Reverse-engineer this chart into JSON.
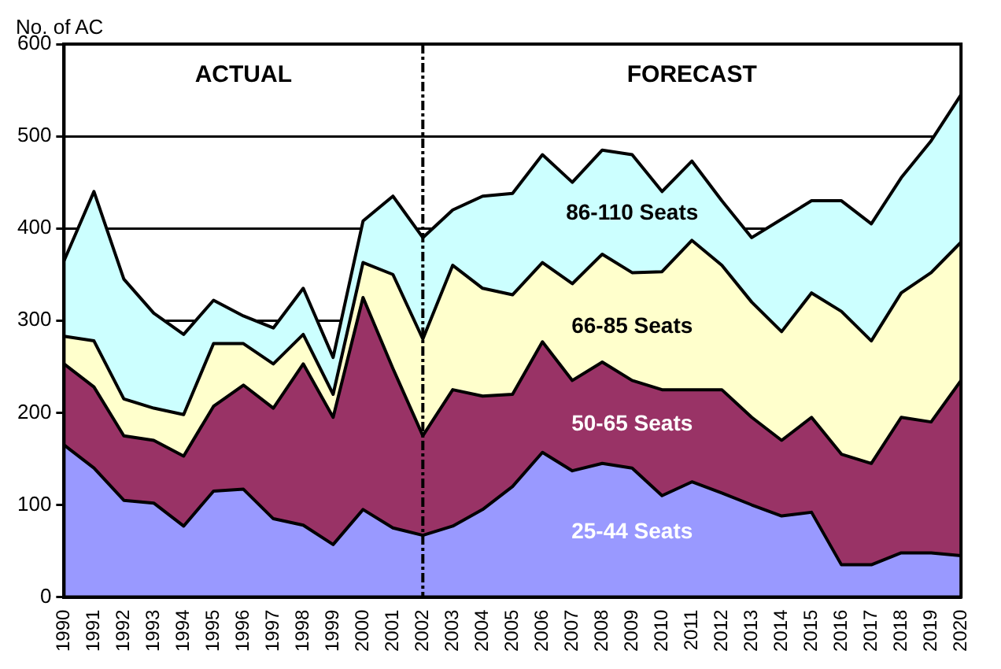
{
  "chart_data": {
    "type": "area",
    "stacked": true,
    "ylabel": "No. of AC",
    "categories": [
      "1990",
      "1991",
      "1992",
      "1993",
      "1994",
      "1995",
      "1996",
      "1997",
      "1998",
      "1999",
      "2000",
      "2001",
      "2002",
      "2003",
      "2004",
      "2005",
      "2006",
      "2007",
      "2008",
      "2009",
      "2010",
      "2011",
      "2012",
      "2013",
      "2014",
      "2015",
      "2016",
      "2017",
      "2018",
      "2019",
      "2020"
    ],
    "series": [
      {
        "name": "25-44 Seats",
        "color": "#9999ff",
        "values": [
          165,
          140,
          105,
          102,
          77,
          115,
          117,
          85,
          78,
          57,
          95,
          75,
          67,
          77,
          95,
          120,
          157,
          137,
          145,
          140,
          110,
          125,
          113,
          100,
          88,
          92,
          35,
          35,
          48,
          48,
          45
        ]
      },
      {
        "name": "50-65 Seats",
        "color": "#993366",
        "values": [
          88,
          88,
          70,
          68,
          76,
          92,
          113,
          120,
          175,
          138,
          230,
          173,
          108,
          148,
          123,
          100,
          120,
          98,
          110,
          95,
          115,
          100,
          112,
          95,
          82,
          103,
          120,
          110,
          147,
          142,
          190
        ]
      },
      {
        "name": "66-85 Seats",
        "color": "#ffffcc",
        "values": [
          30,
          50,
          40,
          35,
          45,
          68,
          45,
          48,
          32,
          25,
          38,
          102,
          105,
          135,
          117,
          108,
          86,
          105,
          117,
          117,
          128,
          162,
          135,
          125,
          118,
          135,
          155,
          133,
          135,
          162,
          150
        ]
      },
      {
        "name": "86-110 Seats",
        "color": "#ccffff",
        "values": [
          82,
          162,
          130,
          103,
          87,
          47,
          30,
          39,
          50,
          40,
          45,
          85,
          110,
          60,
          100,
          110,
          117,
          110,
          113,
          128,
          87,
          86,
          70,
          70,
          122,
          100,
          120,
          127,
          125,
          143,
          160
        ]
      }
    ],
    "ylim": [
      0,
      600
    ],
    "yticks": [
      0,
      100,
      200,
      300,
      400,
      500,
      600
    ],
    "grid": "y",
    "legend": false,
    "ref_lines": [
      {
        "axis": "x",
        "value": "2002",
        "line_style": "dashed",
        "color": "#000000"
      }
    ],
    "annotations": [
      "ACTUAL",
      "FORECAST"
    ]
  }
}
